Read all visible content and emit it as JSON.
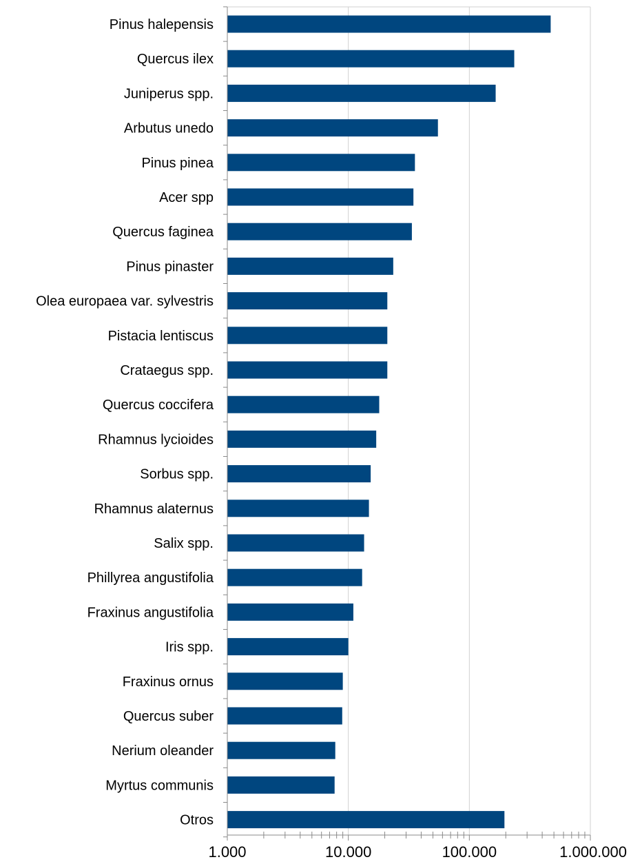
{
  "chart_data": {
    "type": "bar",
    "orientation": "horizontal",
    "x_scale": "log",
    "xlim": [
      1000,
      1000000
    ],
    "grid": true,
    "legend": "none",
    "bar_color": "#00467F",
    "grid_color": "#D0D0D0",
    "axis_color": "#888888",
    "categories": [
      "Pinus halepensis",
      "Quercus ilex",
      "Juniperus spp.",
      "Arbutus unedo",
      "Pinus pinea",
      "Acer spp",
      "Quercus faginea",
      "Pinus pinaster",
      "Olea europaea var. sylvestris",
      "Pistacia lentiscus",
      "Crataegus spp.",
      "Quercus coccifera",
      "Rhamnus lycioides",
      "Sorbus spp.",
      "Rhamnus alaternus",
      "Salix spp.",
      "Phillyrea angustifolia",
      "Fraxinus angustifolia",
      "Iris spp.",
      "Fraxinus ornus",
      "Quercus suber",
      "Nerium oleander",
      "Myrtus communis",
      "Otros"
    ],
    "values": [
      470000,
      235000,
      165000,
      55000,
      35500,
      34500,
      33500,
      23500,
      21000,
      21000,
      21000,
      18000,
      17000,
      15300,
      14800,
      13500,
      13000,
      11000,
      10000,
      9000,
      8900,
      7800,
      7700,
      195000
    ],
    "tick_values": [
      1000,
      10000,
      100000,
      1000000
    ],
    "tick_labels": [
      "1.000",
      "10.000",
      "100.000",
      "1.000.000"
    ]
  }
}
